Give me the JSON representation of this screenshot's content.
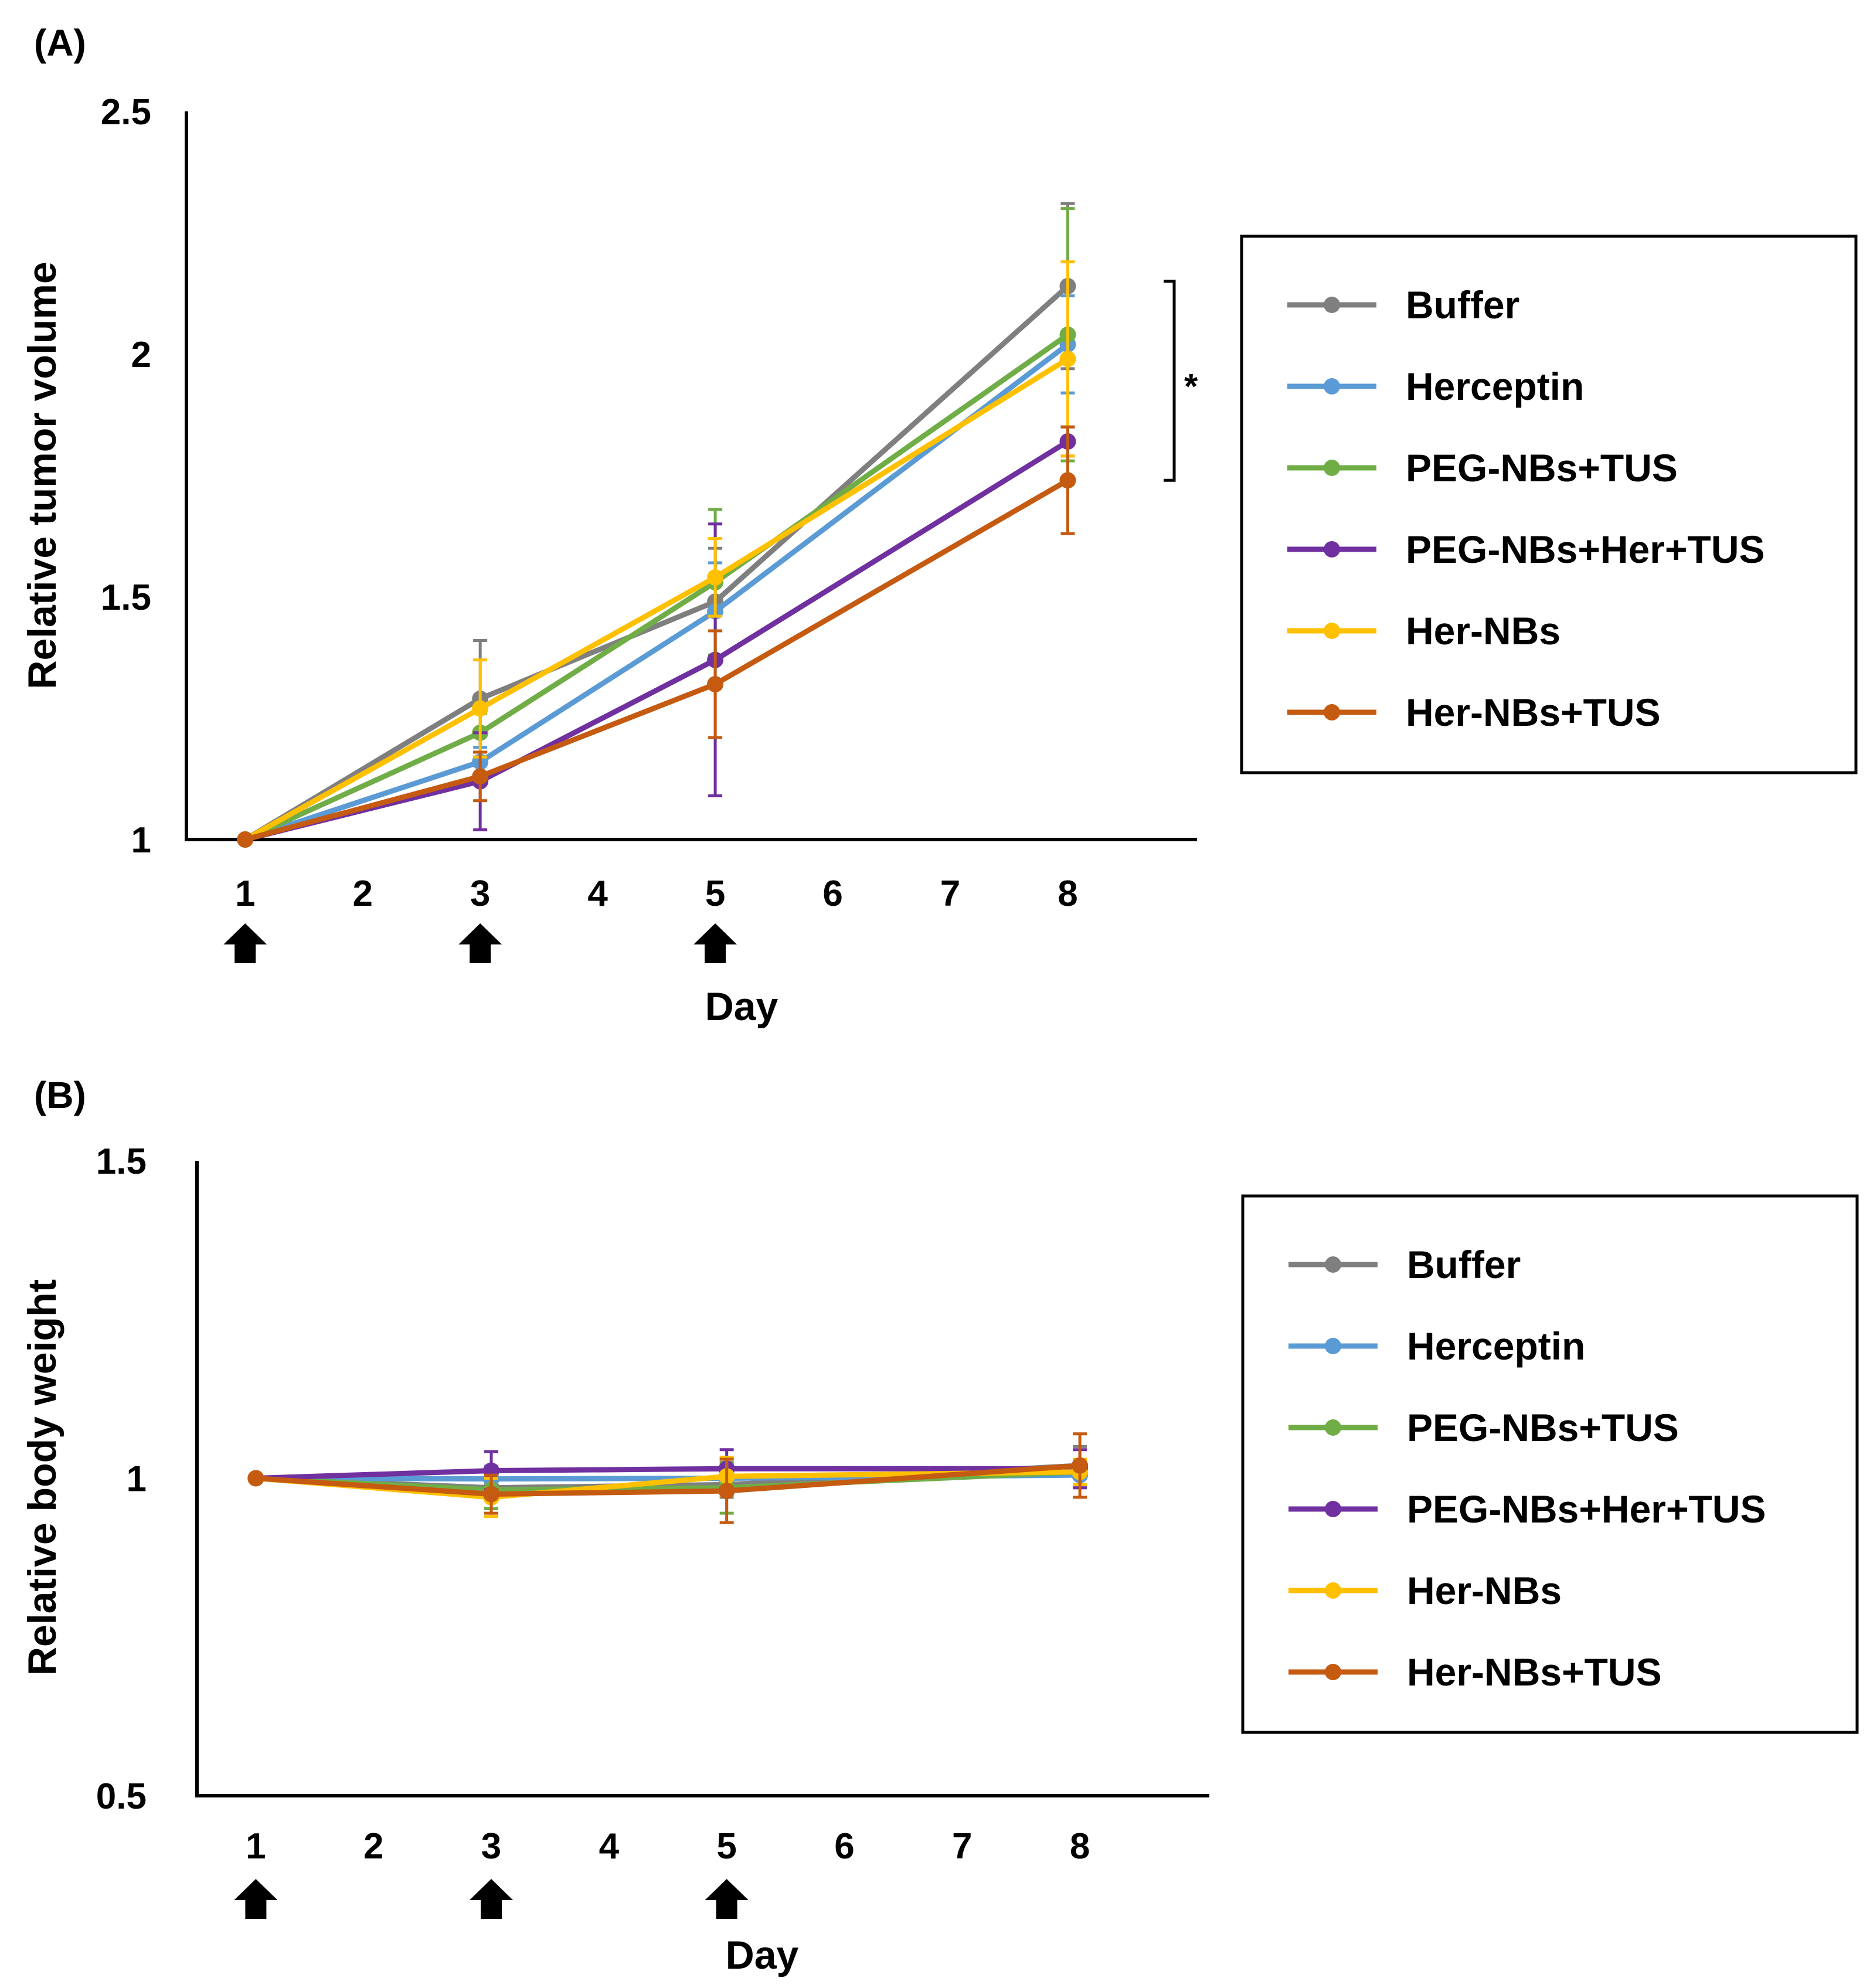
{
  "chart_data": [
    {
      "panel_label": "(A)",
      "type": "line",
      "xlabel": "Day",
      "ylabel": "Relative tumor volume",
      "x_ticks": [
        "1",
        "2",
        "3",
        "4",
        "5",
        "6",
        "7",
        "8"
      ],
      "y_ticks": [
        "1",
        "1.5",
        "2",
        "2.5"
      ],
      "ylim": [
        1,
        2.5
      ],
      "xlim": [
        0.5,
        9.1
      ],
      "treatment_days": [
        1,
        3,
        5
      ],
      "annotation": "*",
      "annotation_bracket": [
        1.74,
        2.15
      ],
      "grid": false,
      "legend_position": "right",
      "series": [
        {
          "name": "Buffer",
          "color": "#7f7f7f",
          "x": [
            1,
            3,
            5,
            8
          ],
          "values": [
            1.0,
            1.29,
            1.49,
            2.14
          ],
          "error": [
            0,
            0.12,
            0.11,
            0.17
          ]
        },
        {
          "name": "Herceptin",
          "color": "#5b9bd5",
          "x": [
            1,
            3,
            5,
            8
          ],
          "values": [
            1.0,
            1.16,
            1.47,
            2.02
          ],
          "error": [
            0,
            0.03,
            0.1,
            0.1
          ]
        },
        {
          "name": "PEG-NBs+TUS",
          "color": "#70ad47",
          "x": [
            1,
            3,
            5,
            8
          ],
          "values": [
            1.0,
            1.22,
            1.53,
            2.04
          ],
          "error": [
            0,
            0.04,
            0.15,
            0.26
          ]
        },
        {
          "name": "PEG-NBs+Her+TUS",
          "color": "#7030a0",
          "x": [
            1,
            3,
            5,
            8
          ],
          "values": [
            1.0,
            1.12,
            1.37,
            1.82
          ],
          "error": [
            0,
            0.1,
            0.28,
            0.03
          ]
        },
        {
          "name": "Her-NBs",
          "color": "#ffc000",
          "x": [
            1,
            3,
            5,
            8
          ],
          "values": [
            1.0,
            1.27,
            1.54,
            1.99
          ],
          "error": [
            0,
            0.1,
            0.08,
            0.2
          ]
        },
        {
          "name": "Her-NBs+TUS",
          "color": "#c55a11",
          "x": [
            1,
            3,
            5,
            8
          ],
          "values": [
            1.0,
            1.13,
            1.32,
            1.74
          ],
          "error": [
            0,
            0.05,
            0.11,
            0.11
          ]
        }
      ]
    },
    {
      "panel_label": "(B)",
      "type": "line",
      "xlabel": "Day",
      "ylabel": "Relative body weight",
      "x_ticks": [
        "1",
        "2",
        "3",
        "4",
        "5",
        "6",
        "7",
        "8"
      ],
      "y_ticks": [
        "0.5",
        "1",
        "1.5"
      ],
      "ylim": [
        0.5,
        1.5
      ],
      "xlim": [
        0.5,
        9.1
      ],
      "treatment_days": [
        1,
        3,
        5
      ],
      "grid": false,
      "legend_position": "right",
      "series": [
        {
          "name": "Buffer",
          "color": "#7f7f7f",
          "x": [
            1,
            3,
            5,
            8
          ],
          "values": [
            1.0,
            0.985,
            0.99,
            1.02
          ],
          "error": [
            0,
            0.02,
            0.02,
            0.03
          ]
        },
        {
          "name": "Herceptin",
          "color": "#5b9bd5",
          "x": [
            1,
            3,
            5,
            8
          ],
          "values": [
            1.0,
            0.999,
            1.0,
            1.005
          ],
          "error": [
            0,
            0.02,
            0.02,
            0.02
          ]
        },
        {
          "name": "PEG-NBs+TUS",
          "color": "#70ad47",
          "x": [
            1,
            3,
            5,
            8
          ],
          "values": [
            1.0,
            0.982,
            0.985,
            1.01
          ],
          "error": [
            0,
            0.03,
            0.04,
            0.02
          ]
        },
        {
          "name": "PEG-NBs+Her+TUS",
          "color": "#7030a0",
          "x": [
            1,
            3,
            5,
            8
          ],
          "values": [
            1.0,
            1.012,
            1.015,
            1.015
          ],
          "error": [
            0,
            0.03,
            0.03,
            0.03
          ]
        },
        {
          "name": "Her-NBs",
          "color": "#ffc000",
          "x": [
            1,
            3,
            5,
            8
          ],
          "values": [
            1.0,
            0.97,
            1.003,
            1.01
          ],
          "error": [
            0,
            0.03,
            0.03,
            0.02
          ]
        },
        {
          "name": "Her-NBs+TUS",
          "color": "#c55a11",
          "x": [
            1,
            3,
            5,
            8
          ],
          "values": [
            1.0,
            0.975,
            0.98,
            1.02
          ],
          "error": [
            0,
            0.03,
            0.05,
            0.05
          ]
        }
      ]
    }
  ]
}
